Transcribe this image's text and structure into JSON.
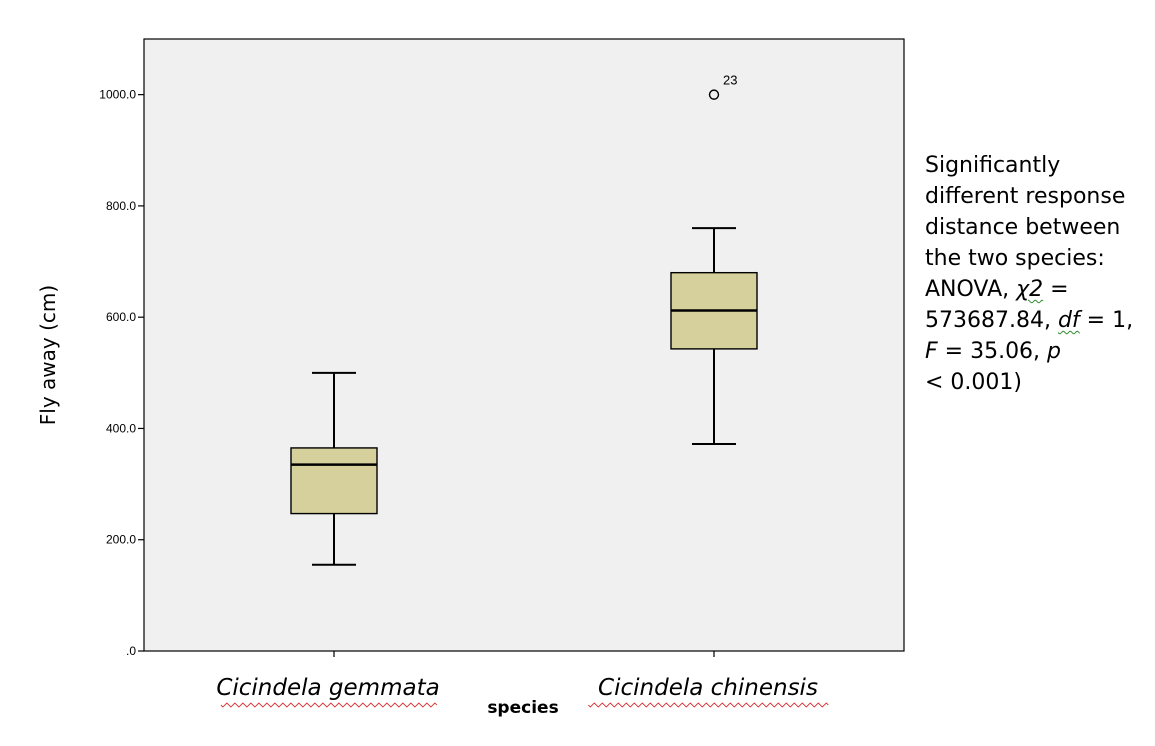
{
  "chart_data": {
    "type": "box",
    "categories": [
      "Cicindela gemmata",
      "Cicindela chinensis"
    ],
    "series": [
      {
        "category": "Cicindela gemmata",
        "whisker_low": 155,
        "q1": 247,
        "median": 335,
        "q3": 365,
        "whisker_high": 500,
        "outliers": []
      },
      {
        "category": "Cicindela chinensis",
        "whisker_low": 372,
        "q1": 543,
        "median": 612,
        "q3": 680,
        "whisker_high": 760,
        "outliers": [
          {
            "value": 1000,
            "label": "23"
          }
        ]
      }
    ],
    "xlabel": "species",
    "ylabel": "Fly away (cm)",
    "ylim": [
      0,
      1100
    ],
    "yticks": [
      0,
      200,
      400,
      600,
      800,
      1000
    ],
    "ytick_labels": [
      ".0",
      "200.0",
      "400.0",
      "600.0",
      "800.0",
      "1000.0"
    ],
    "grid": false,
    "colors": {
      "box_fill": "#d6d09c",
      "plot_bg": "#f0f0f0",
      "line": "#000000"
    }
  },
  "annotation": {
    "l1": "Significantly",
    "l2": "different response",
    "l3": "distance between",
    "l4": "the two species:",
    "l5a": "ANOVA, ",
    "l5chi": "χ2",
    "l5b": " =",
    "l6a": "573687.84, ",
    "l6df": "df",
    "l6b": " = 1,",
    "l7F": "F",
    "l7a": " = 35.06, ",
    "l7p": "p",
    "l8": " < 0.001)"
  }
}
